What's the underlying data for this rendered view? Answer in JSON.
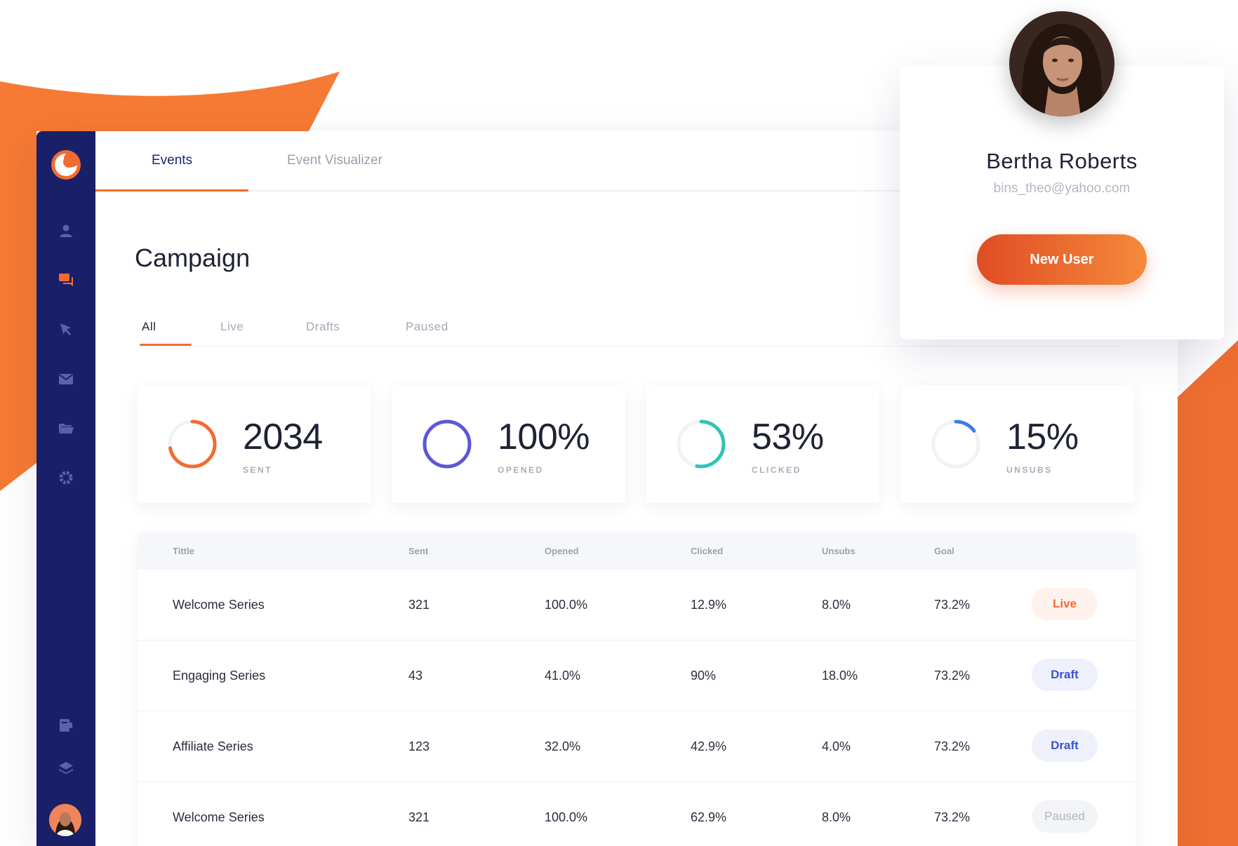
{
  "colors": {
    "accent": "#f26b31",
    "sidebar": "#1a2068",
    "live": "#f26b31",
    "draft": "#3b52d8",
    "opened": "#5b57d6",
    "clicked": "#2ec4b6",
    "unsubs": "#3d7cf0"
  },
  "sidebar": {
    "items": [
      {
        "icon": "user-icon"
      },
      {
        "icon": "chat-icon",
        "active": true
      },
      {
        "icon": "cursor-icon"
      },
      {
        "icon": "mail-icon"
      },
      {
        "icon": "folder-icon"
      },
      {
        "icon": "gear-icon"
      },
      {
        "icon": "document-icon"
      },
      {
        "icon": "layers-icon"
      }
    ]
  },
  "tabs": [
    {
      "label": "Events",
      "active": true
    },
    {
      "label": "Event Visualizer",
      "active": false
    }
  ],
  "page": {
    "title": "Campaign"
  },
  "filters": [
    {
      "label": "All",
      "active": true
    },
    {
      "label": "Live"
    },
    {
      "label": "Drafts"
    },
    {
      "label": "Paused"
    }
  ],
  "stats": [
    {
      "value": "2034",
      "label": "SENT",
      "progress": 0.72,
      "color": "#f26b31"
    },
    {
      "value": "100%",
      "label": "OPENED",
      "progress": 1.0,
      "color": "#5b57d6"
    },
    {
      "value": "53%",
      "label": "CLICKED",
      "progress": 0.53,
      "color": "#2ec4b6"
    },
    {
      "value": "15%",
      "label": "UNSUBS",
      "progress": 0.15,
      "color": "#3d7cf0"
    }
  ],
  "table": {
    "headers": [
      "Tittle",
      "Sent",
      "Opened",
      "Clicked",
      "Unsubs",
      "Goal"
    ],
    "rows": [
      {
        "title": "Welcome Series",
        "sent": "321",
        "opened": "100.0%",
        "clicked": "12.9%",
        "unsubs": "8.0%",
        "goal": "73.2%",
        "status": "Live"
      },
      {
        "title": "Engaging Series",
        "sent": "43",
        "opened": "41.0%",
        "clicked": "90%",
        "unsubs": "18.0%",
        "goal": "73.2%",
        "status": "Draft"
      },
      {
        "title": "Affiliate Series",
        "sent": "123",
        "opened": "32.0%",
        "clicked": "42.9%",
        "unsubs": "4.0%",
        "goal": "73.2%",
        "status": "Draft"
      },
      {
        "title": "Welcome Series",
        "sent": "321",
        "opened": "100.0%",
        "clicked": "62.9%",
        "unsubs": "8.0%",
        "goal": "73.2%",
        "status": "Paused"
      }
    ]
  },
  "user": {
    "name": "Bertha Roberts",
    "email": "bins_theo@yahoo.com",
    "button_label": "New User"
  }
}
